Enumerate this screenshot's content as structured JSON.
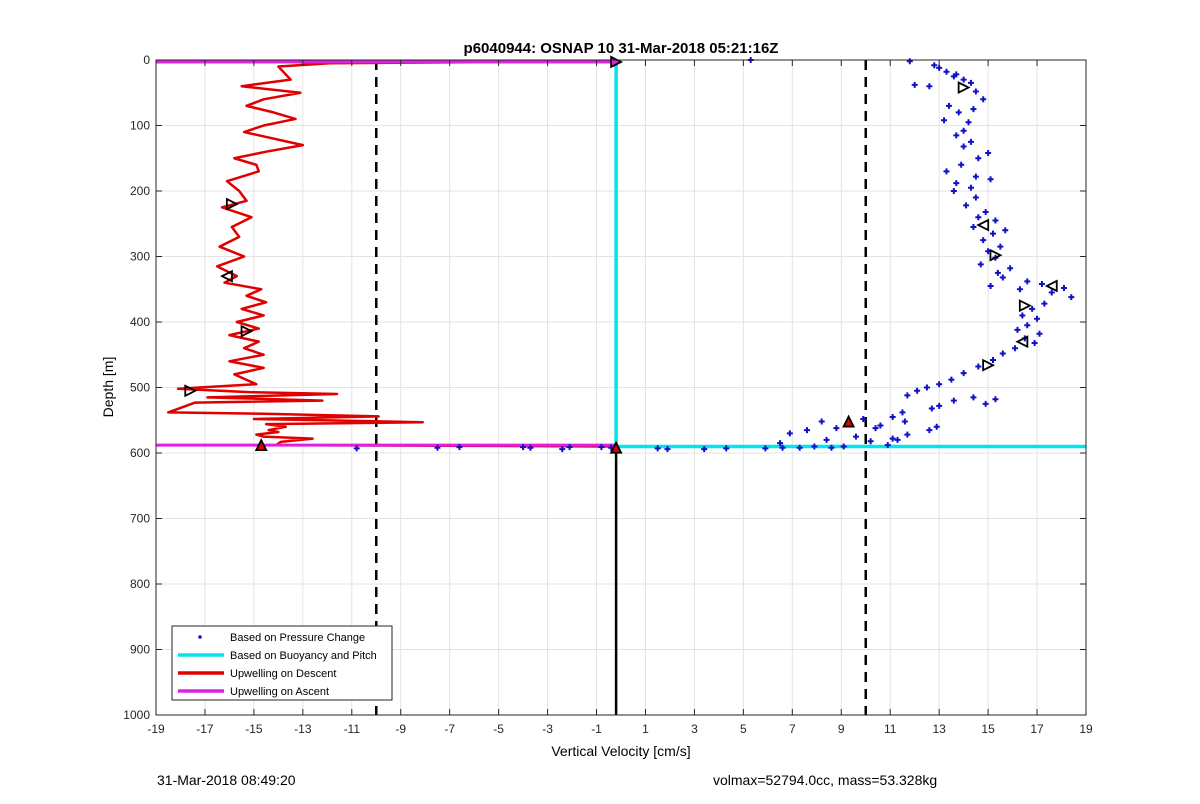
{
  "chart_data": {
    "type": "scatter",
    "title": "p6040944: OSNAP 10 31-Mar-2018 05:21:16Z",
    "xlabel": "Vertical Velocity [cm/s]",
    "ylabel": "Depth [m]",
    "xlim": [
      -19,
      19
    ],
    "ylim": [
      0,
      1000
    ],
    "y_reversed": true,
    "grid": true,
    "legend_position": "bottom-left",
    "x_ticks": [
      -19,
      -17,
      -15,
      -13,
      -11,
      -9,
      -7,
      -5,
      -3,
      -1,
      1,
      3,
      5,
      7,
      9,
      11,
      13,
      15,
      17,
      19
    ],
    "y_ticks": [
      0,
      100,
      200,
      300,
      400,
      500,
      600,
      700,
      800,
      900,
      1000
    ],
    "series": [
      {
        "name": "Based on Pressure Change",
        "kind": "points",
        "color": "#1010c8",
        "x": [
          11.8,
          12.8,
          13.0,
          13.3,
          13.6,
          14.0,
          14.3,
          13.7,
          12.0,
          12.6,
          14.5,
          14.8,
          14.4,
          13.4,
          13.8,
          14.2,
          13.2,
          14.0,
          13.7,
          14.3,
          14.0,
          15.0,
          14.6,
          13.9,
          13.3,
          14.5,
          13.7,
          15.1,
          14.3,
          13.6,
          14.5,
          14.1,
          14.9,
          14.6,
          15.3,
          14.4,
          15.2,
          14.8,
          15.5,
          15.7,
          15.0,
          15.3,
          14.7,
          15.9,
          15.4,
          15.6,
          15.1,
          16.3,
          16.6,
          17.2,
          18.1,
          17.6,
          18.4,
          17.3,
          16.8,
          16.4,
          17.0,
          16.6,
          16.2,
          17.1,
          16.5,
          16.9,
          16.1,
          15.6,
          15.2,
          14.6,
          14.0,
          13.5,
          13.0,
          12.5,
          12.1,
          11.7,
          14.4,
          15.3,
          14.9,
          13.6,
          13.0,
          12.7,
          11.5,
          11.1,
          11.6,
          12.9,
          12.6,
          10.6,
          11.7,
          9.9,
          10.4,
          11.1,
          9.3,
          8.8,
          8.2,
          7.6,
          6.9,
          6.5,
          8.4,
          7.9,
          9.6,
          10.2,
          11.3,
          10.9,
          9.1,
          8.6,
          7.3,
          6.6,
          5.9,
          4.3,
          3.4,
          1.9,
          -0.4,
          -0.8,
          -2.1,
          -3.7,
          -2.4,
          -4.0,
          -7.5,
          -6.6,
          -10.8,
          5.3,
          -0.2,
          1.5
        ],
        "y": [
          2,
          8,
          12,
          18,
          25,
          30,
          35,
          22,
          38,
          40,
          48,
          60,
          75,
          70,
          80,
          95,
          92,
          108,
          115,
          125,
          132,
          142,
          150,
          160,
          170,
          178,
          188,
          182,
          195,
          200,
          210,
          222,
          232,
          240,
          245,
          255,
          265,
          275,
          285,
          260,
          292,
          302,
          312,
          318,
          325,
          332,
          345,
          350,
          338,
          342,
          348,
          355,
          362,
          372,
          380,
          390,
          395,
          405,
          412,
          418,
          425,
          432,
          440,
          448,
          458,
          468,
          478,
          488,
          495,
          500,
          505,
          512,
          515,
          518,
          525,
          520,
          528,
          532,
          538,
          545,
          552,
          560,
          565,
          558,
          572,
          548,
          562,
          578,
          555,
          562,
          552,
          565,
          570,
          585,
          580,
          590,
          575,
          582,
          580,
          588,
          590,
          592,
          592,
          592,
          593,
          593,
          594,
          594,
          592,
          591,
          591,
          592,
          594,
          591,
          592,
          591,
          593,
          0,
          3,
          593
        ]
      },
      {
        "name": "Based on Buoyancy and Pitch",
        "kind": "line",
        "color": "#00e5ee",
        "x": [
          -0.2,
          -0.2,
          19.0
        ],
        "y": [
          2,
          590,
          590
        ]
      },
      {
        "name": "Upwelling on Descent",
        "kind": "line",
        "color": "#e00000",
        "x": [
          -0.2,
          -11.9,
          -14.0,
          -13.5,
          -15.5,
          -13.1,
          -14.6,
          -15.3,
          -14.2,
          -13.3,
          -14.6,
          -15.4,
          -13.0,
          -14.5,
          -15.8,
          -14.9,
          -14.8,
          -16.1,
          -15.6,
          -15.3,
          -16.3,
          -15.1,
          -15.9,
          -15.6,
          -16.4,
          -15.4,
          -16.5,
          -15.7,
          -16.2,
          -14.7,
          -15.3,
          -14.5,
          -15.5,
          -14.6,
          -15.7,
          -14.8,
          -16.0,
          -14.8,
          -15.4,
          -14.6,
          -16.0,
          -14.6,
          -15.8,
          -14.9,
          -18.1,
          -15.2,
          -11.6,
          -16.9,
          -12.2,
          -17.4,
          -18.5,
          -14.6,
          -9.9,
          -15.0,
          -8.1,
          -14.5,
          -13.7,
          -14.4,
          -14.0,
          -14.9,
          -14.6,
          -12.6,
          -13.9,
          -14.1,
          -0.2
        ],
        "y": [
          2,
          5,
          10,
          30,
          40,
          50,
          60,
          70,
          80,
          90,
          100,
          110,
          130,
          140,
          150,
          160,
          170,
          185,
          200,
          215,
          225,
          240,
          255,
          270,
          285,
          300,
          315,
          330,
          340,
          350,
          360,
          370,
          380,
          390,
          400,
          410,
          420,
          430,
          440,
          450,
          460,
          470,
          480,
          495,
          502,
          507,
          510,
          515,
          520,
          523,
          538,
          540,
          544,
          548,
          553,
          556,
          560,
          565,
          568,
          572,
          575,
          578,
          583,
          588,
          590
        ]
      },
      {
        "name": "Upwelling on Ascent",
        "kind": "line",
        "color": "#e020e0",
        "x": [
          -19,
          -0.2
        ],
        "y": [
          3,
          3
        ],
        "x2": [
          -19,
          -0.2
        ],
        "y2": [
          588,
          588
        ]
      }
    ],
    "reference_lines": [
      {
        "axis": "x",
        "value": -10,
        "style": "dashed",
        "color": "#000000"
      },
      {
        "axis": "x",
        "value": 10,
        "style": "dashed",
        "color": "#000000"
      },
      {
        "axis": "x",
        "value": -0.2,
        "from": 590,
        "to": 1000,
        "style": "solid",
        "color": "#000000"
      }
    ],
    "markers": [
      {
        "x": -0.2,
        "y": 3,
        "shape": "right",
        "color": "#e020e0"
      },
      {
        "x": 14.0,
        "y": 42,
        "shape": "right",
        "color": "none"
      },
      {
        "x": -15.9,
        "y": 220,
        "shape": "right",
        "color": "none"
      },
      {
        "x": 14.8,
        "y": 252,
        "shape": "left",
        "color": "none"
      },
      {
        "x": 15.3,
        "y": 298,
        "shape": "right",
        "color": "none"
      },
      {
        "x": -16.1,
        "y": 330,
        "shape": "left",
        "color": "none"
      },
      {
        "x": 17.6,
        "y": 345,
        "shape": "left",
        "color": "none"
      },
      {
        "x": 16.5,
        "y": 375,
        "shape": "right",
        "color": "none"
      },
      {
        "x": -15.3,
        "y": 414,
        "shape": "right",
        "color": "none"
      },
      {
        "x": 16.4,
        "y": 430,
        "shape": "left",
        "color": "none"
      },
      {
        "x": 15.0,
        "y": 466,
        "shape": "right",
        "color": "none"
      },
      {
        "x": -17.6,
        "y": 505,
        "shape": "right",
        "color": "none"
      },
      {
        "x": 9.3,
        "y": 552,
        "shape": "up",
        "color": "#e00000"
      },
      {
        "x": -14.7,
        "y": 588,
        "shape": "up",
        "color": "#e00000"
      },
      {
        "x": -0.2,
        "y": 592,
        "shape": "up",
        "color": "#e00000"
      }
    ]
  },
  "footer": {
    "left": "31-Mar-2018 08:49:20",
    "right": "volmax=52794.0cc, mass=53.328kg"
  }
}
